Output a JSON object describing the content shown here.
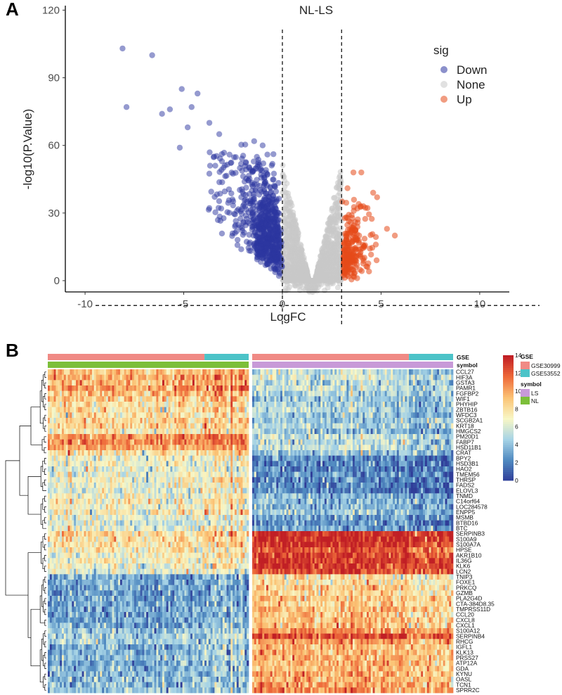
{
  "panel_a": {
    "letter": "A"
  },
  "panel_b": {
    "letter": "B"
  },
  "chart_data": [
    {
      "type": "scatter",
      "title": "NL-LS",
      "xlabel": "LogFC",
      "ylabel": "-log10(P.Value)",
      "xlim": [
        -11,
        11.5
      ],
      "ylim": [
        -5,
        122
      ],
      "xticks": [
        -10,
        -5,
        0,
        5,
        10
      ],
      "xtick_labels": [
        "-10",
        "-5",
        "0",
        "5",
        "10"
      ],
      "yticks": [
        0,
        30,
        60,
        90,
        120
      ],
      "ytick_labels": [
        "0",
        "30",
        "60",
        "90",
        "120"
      ],
      "thresholds": {
        "logfc": [
          0,
          3
        ],
        "y_cutoff": -11
      },
      "legend": {
        "title": "sig",
        "position": "right",
        "entries": [
          {
            "label": "Down",
            "color": "#2c35a0"
          },
          {
            "label": "None",
            "color": "#c8c8c8"
          },
          {
            "label": "Up",
            "color": "#e64a19"
          }
        ]
      },
      "highlighted_down_points": [
        {
          "x": -8.1,
          "y": 103
        },
        {
          "x": -7.9,
          "y": 77
        },
        {
          "x": -6.6,
          "y": 100
        },
        {
          "x": -5.7,
          "y": 76
        },
        {
          "x": -5.1,
          "y": 85
        },
        {
          "x": -6.1,
          "y": 74
        },
        {
          "x": -4.3,
          "y": 83
        },
        {
          "x": -4.6,
          "y": 77
        },
        {
          "x": -3.7,
          "y": 70
        },
        {
          "x": -4.8,
          "y": 68
        },
        {
          "x": -3.2,
          "y": 65
        },
        {
          "x": -5.2,
          "y": 59
        },
        {
          "x": -3.1,
          "y": 32
        },
        {
          "x": -3.4,
          "y": 51
        },
        {
          "x": -2.3,
          "y": 31
        },
        {
          "x": -1.0,
          "y": 60
        }
      ],
      "highlighted_up_points": [
        {
          "x": 3.6,
          "y": 48
        },
        {
          "x": 4.0,
          "y": 48
        },
        {
          "x": 4.6,
          "y": 39
        },
        {
          "x": 4.8,
          "y": 37
        },
        {
          "x": 5.3,
          "y": 23
        },
        {
          "x": 5.7,
          "y": 20
        },
        {
          "x": 3.3,
          "y": 41
        },
        {
          "x": 4.1,
          "y": 33
        },
        {
          "x": 3.8,
          "y": 32
        }
      ]
    },
    {
      "type": "heatmap",
      "color_scale": {
        "min": 0,
        "max": 14,
        "ticks": [
          0,
          2,
          4,
          6,
          8,
          10,
          12,
          14
        ],
        "tick_labels": [
          "0",
          "2",
          "4",
          "6",
          "8",
          "10",
          "12",
          "14"
        ],
        "colors": [
          "#2f3c98",
          "#4f89c0",
          "#a6d3e6",
          "#f8f7c6",
          "#fbc476",
          "#ee6a3a",
          "#c11f25"
        ]
      },
      "column_groups": [
        {
          "symbol": "NL",
          "columns": 100,
          "gse": [
            {
              "name": "GSE30999",
              "columns": 78
            },
            {
              "name": "GSE53552",
              "columns": 22
            }
          ]
        },
        {
          "symbol": "LS",
          "columns": 100,
          "gse": [
            {
              "name": "GSE30999",
              "columns": 78
            },
            {
              "name": "GSE53552",
              "columns": 22
            }
          ]
        }
      ],
      "annotations": [
        {
          "name": "GSE",
          "levels": [
            {
              "label": "GSE30999",
              "color": "#f08a85"
            },
            {
              "label": "GSE53552",
              "color": "#4cc3c8"
            }
          ]
        },
        {
          "name": "symbol",
          "levels": [
            {
              "label": "LS",
              "color": "#c89ad8"
            },
            {
              "label": "NL",
              "color": "#7cbf3a"
            }
          ]
        }
      ],
      "genes": [
        {
          "name": "CCL27",
          "nl": 9.5,
          "ls": 5.5
        },
        {
          "name": "HIF3A",
          "nl": 10.2,
          "ls": 5.8
        },
        {
          "name": "GSTA3",
          "nl": 9.6,
          "ls": 5.2
        },
        {
          "name": "PAMR1",
          "nl": 10.4,
          "ls": 5.6
        },
        {
          "name": "FGFBP2",
          "nl": 9.3,
          "ls": 5.0
        },
        {
          "name": "WIF1",
          "nl": 8.8,
          "ls": 4.4
        },
        {
          "name": "PHYHIP",
          "nl": 8.2,
          "ls": 4.6
        },
        {
          "name": "ZBTB16",
          "nl": 8.4,
          "ls": 4.8
        },
        {
          "name": "WFDC3",
          "nl": 8.0,
          "ls": 4.3
        },
        {
          "name": "SCGB2A1",
          "nl": 8.6,
          "ls": 4.5
        },
        {
          "name": "KRT18",
          "nl": 8.3,
          "ls": 4.8
        },
        {
          "name": "HMGCS2",
          "nl": 7.6,
          "ls": 4.2
        },
        {
          "name": "PM20D1",
          "nl": 10.8,
          "ls": 5.6
        },
        {
          "name": "FABP7",
          "nl": 11.2,
          "ls": 5.2
        },
        {
          "name": "HSD11B1",
          "nl": 10.0,
          "ls": 5.4
        },
        {
          "name": "CRAT",
          "nl": 8.2,
          "ls": 4.2
        },
        {
          "name": "BPY2",
          "nl": 7.0,
          "ls": 2.5
        },
        {
          "name": "HSD3B1",
          "nl": 6.8,
          "ls": 2.4
        },
        {
          "name": "HAO2",
          "nl": 6.4,
          "ls": 2.3
        },
        {
          "name": "TMEM56",
          "nl": 6.6,
          "ls": 2.6
        },
        {
          "name": "THRSP",
          "nl": 7.0,
          "ls": 2.4
        },
        {
          "name": "FADS2",
          "nl": 6.8,
          "ls": 2.2
        },
        {
          "name": "ELOVL3",
          "nl": 6.4,
          "ls": 2.3
        },
        {
          "name": "TNMD",
          "nl": 6.8,
          "ls": 3.6
        },
        {
          "name": "C14orf64",
          "nl": 7.4,
          "ls": 4.0
        },
        {
          "name": "LOC284578",
          "nl": 7.0,
          "ls": 3.8
        },
        {
          "name": "ENPP5",
          "nl": 7.6,
          "ls": 4.2
        },
        {
          "name": "MSMB",
          "nl": 6.2,
          "ls": 3.0
        },
        {
          "name": "BTBD16",
          "nl": 6.0,
          "ls": 2.6
        },
        {
          "name": "BTC",
          "nl": 6.6,
          "ls": 3.2
        },
        {
          "name": "SERPINB3",
          "nl": 8.6,
          "ls": 13.6
        },
        {
          "name": "S100A9",
          "nl": 8.0,
          "ls": 13.8
        },
        {
          "name": "S100A7A",
          "nl": 8.2,
          "ls": 13.4
        },
        {
          "name": "HPSE",
          "nl": 7.6,
          "ls": 12.4
        },
        {
          "name": "AKR1B10",
          "nl": 7.2,
          "ls": 13.0
        },
        {
          "name": "IL36G",
          "nl": 7.0,
          "ls": 13.2
        },
        {
          "name": "KLK6",
          "nl": 6.8,
          "ls": 13.4
        },
        {
          "name": "LCN2",
          "nl": 6.6,
          "ls": 12.6
        },
        {
          "name": "TNIP3",
          "nl": 3.2,
          "ls": 8.4
        },
        {
          "name": "FOXE1",
          "nl": 3.4,
          "ls": 8.2
        },
        {
          "name": "PRKCQ",
          "nl": 3.3,
          "ls": 8.6
        },
        {
          "name": "GZMB",
          "nl": 3.0,
          "ls": 8.4
        },
        {
          "name": "PLA2G4D",
          "nl": 3.4,
          "ls": 9.0
        },
        {
          "name": "CTA-384D8.35",
          "nl": 3.2,
          "ls": 8.8
        },
        {
          "name": "TMPRSS11D",
          "nl": 3.6,
          "ls": 9.4
        },
        {
          "name": "CCL20",
          "nl": 3.1,
          "ls": 9.0
        },
        {
          "name": "CXCL8",
          "nl": 3.3,
          "ls": 9.2
        },
        {
          "name": "CXCL1",
          "nl": 3.4,
          "ls": 9.0
        },
        {
          "name": "S100A12",
          "nl": 4.2,
          "ls": 10.6
        },
        {
          "name": "SERPINB4",
          "nl": 5.0,
          "ls": 12.8
        },
        {
          "name": "RHCG",
          "nl": 4.8,
          "ls": 10.4
        },
        {
          "name": "IGFL1",
          "nl": 3.6,
          "ls": 9.4
        },
        {
          "name": "KLK13",
          "nl": 3.8,
          "ls": 9.6
        },
        {
          "name": "PRSS27",
          "nl": 4.0,
          "ls": 9.8
        },
        {
          "name": "ATP12A",
          "nl": 3.6,
          "ls": 9.6
        },
        {
          "name": "GDA",
          "nl": 3.8,
          "ls": 9.8
        },
        {
          "name": "KYNU",
          "nl": 4.0,
          "ls": 10.0
        },
        {
          "name": "OASL",
          "nl": 3.7,
          "ls": 9.8
        },
        {
          "name": "TCN1",
          "nl": 3.8,
          "ls": 10.2
        },
        {
          "name": "SPRR2C",
          "nl": 4.4,
          "ls": 10.8
        }
      ]
    }
  ]
}
